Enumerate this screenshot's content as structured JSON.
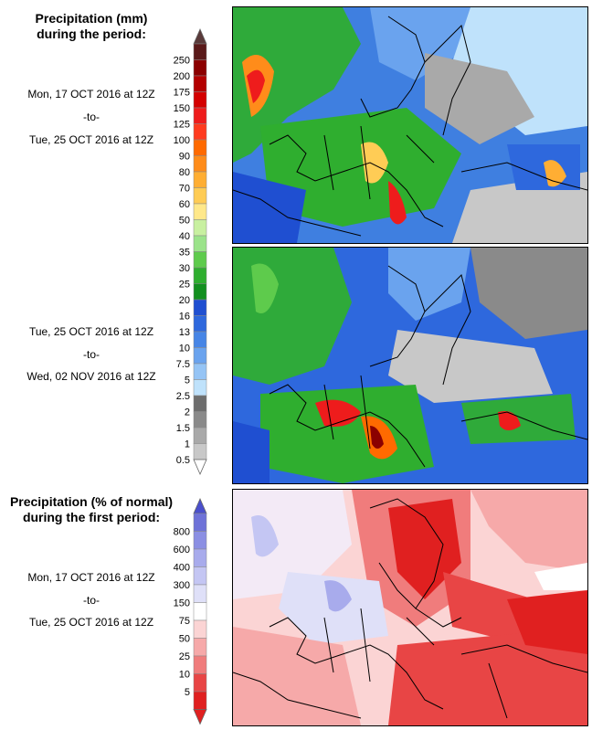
{
  "panel1": {
    "title_line1": "Precipitation (mm)",
    "title_line2": "during the period:",
    "period1": {
      "start": "Mon, 17 OCT 2016 at 12Z",
      "sep": "-to-",
      "end": "Tue, 25 OCT 2016 at 12Z"
    },
    "period2": {
      "start": "Tue, 25 OCT 2016 at 12Z",
      "sep": "-to-",
      "end": "Wed, 02 NOV 2016 at 12Z"
    },
    "legend": {
      "labels": [
        "250",
        "200",
        "175",
        "150",
        "125",
        "100",
        "90",
        "80",
        "70",
        "60",
        "50",
        "40",
        "35",
        "30",
        "25",
        "20",
        "16",
        "13",
        "10",
        "7.5",
        "5",
        "2.5",
        "2",
        "1.5",
        "1",
        "0.5"
      ],
      "colors": [
        "#5a1a1a",
        "#8b0000",
        "#b30000",
        "#d40000",
        "#ee1c1c",
        "#ff3b1f",
        "#ff6a00",
        "#ff8c1a",
        "#ffae33",
        "#ffcc55",
        "#ffe88a",
        "#c8f0a0",
        "#9be38a",
        "#5ecb4c",
        "#2fae2f",
        "#138f1f",
        "#1f4fd1",
        "#2e68dd",
        "#4685e6",
        "#6aa3ee",
        "#95c4f5",
        "#bfe2fb",
        "#6d6d6d",
        "#8a8a8a",
        "#a9a9a9",
        "#c8c8c8"
      ],
      "top_arrow_color": "#5a3a3a",
      "bottom_arrow_color": "#ffffff"
    }
  },
  "panel2": {
    "title_line1": "Precipitation (% of normal)",
    "title_line2": "during the first period:",
    "period": {
      "start": "Mon, 17 OCT 2016 at 12Z",
      "sep": "-to-",
      "end": "Tue, 25 OCT 2016 at 12Z"
    },
    "legend": {
      "labels": [
        "800",
        "600",
        "400",
        "300",
        "150",
        "75",
        "50",
        "25",
        "10",
        "5"
      ],
      "colors": [
        "#6e72d8",
        "#8b8fe3",
        "#a8abec",
        "#c4c6f3",
        "#dfe0f8",
        "#ffffff",
        "#fbd4d4",
        "#f6a9a9",
        "#f07c7c",
        "#e84545",
        "#e02020"
      ],
      "top_arrow_color": "#4a4fcc",
      "bottom_arrow_color": "#e02020"
    }
  }
}
